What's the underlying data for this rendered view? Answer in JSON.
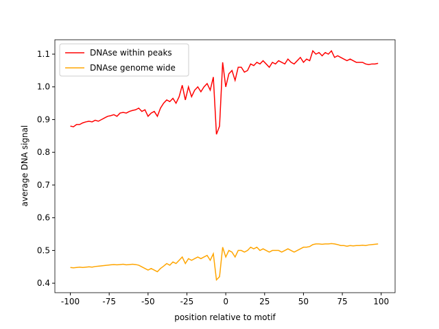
{
  "chart_data": {
    "type": "line",
    "xlabel": "position relative to motif",
    "ylabel": "average DNA signal",
    "x": [
      -100,
      -98,
      -96,
      -94,
      -92,
      -90,
      -88,
      -86,
      -84,
      -82,
      -80,
      -78,
      -76,
      -74,
      -72,
      -70,
      -68,
      -66,
      -64,
      -62,
      -60,
      -58,
      -56,
      -54,
      -52,
      -50,
      -48,
      -46,
      -44,
      -42,
      -40,
      -38,
      -36,
      -34,
      -32,
      -30,
      -28,
      -26,
      -24,
      -22,
      -20,
      -18,
      -16,
      -14,
      -12,
      -10,
      -8,
      -6,
      -4,
      -2,
      0,
      2,
      4,
      6,
      8,
      10,
      12,
      14,
      16,
      18,
      20,
      22,
      24,
      26,
      28,
      30,
      32,
      34,
      36,
      38,
      40,
      42,
      44,
      46,
      48,
      50,
      52,
      54,
      56,
      58,
      60,
      62,
      64,
      66,
      68,
      70,
      72,
      74,
      76,
      78,
      80,
      82,
      84,
      86,
      88,
      90,
      92,
      94,
      96,
      98
    ],
    "series": [
      {
        "name": "DNAse within peaks",
        "color": "#ff0000",
        "values": [
          0.88,
          0.878,
          0.885,
          0.885,
          0.89,
          0.893,
          0.895,
          0.893,
          0.898,
          0.895,
          0.9,
          0.905,
          0.91,
          0.912,
          0.915,
          0.91,
          0.92,
          0.922,
          0.92,
          0.925,
          0.928,
          0.93,
          0.935,
          0.925,
          0.93,
          0.91,
          0.92,
          0.925,
          0.91,
          0.935,
          0.95,
          0.96,
          0.955,
          0.965,
          0.95,
          0.97,
          1.005,
          0.96,
          1.0,
          0.97,
          0.99,
          1.0,
          0.985,
          1.0,
          1.01,
          0.99,
          1.03,
          0.855,
          0.88,
          1.075,
          1.0,
          1.04,
          1.05,
          1.02,
          1.06,
          1.06,
          1.045,
          1.05,
          1.07,
          1.065,
          1.075,
          1.07,
          1.08,
          1.07,
          1.06,
          1.075,
          1.07,
          1.08,
          1.075,
          1.07,
          1.085,
          1.075,
          1.07,
          1.08,
          1.09,
          1.075,
          1.085,
          1.08,
          1.11,
          1.1,
          1.105,
          1.095,
          1.105,
          1.1,
          1.11,
          1.09,
          1.095,
          1.09,
          1.085,
          1.08,
          1.085,
          1.08,
          1.075,
          1.075,
          1.075,
          1.07,
          1.068,
          1.07,
          1.07,
          1.072
        ]
      },
      {
        "name": "DNAse genome wide",
        "color": "#ffa500",
        "values": [
          0.448,
          0.447,
          0.448,
          0.449,
          0.448,
          0.449,
          0.45,
          0.449,
          0.451,
          0.452,
          0.453,
          0.454,
          0.455,
          0.456,
          0.457,
          0.456,
          0.457,
          0.458,
          0.456,
          0.457,
          0.458,
          0.457,
          0.455,
          0.45,
          0.445,
          0.44,
          0.445,
          0.44,
          0.435,
          0.445,
          0.452,
          0.46,
          0.455,
          0.465,
          0.46,
          0.47,
          0.48,
          0.46,
          0.475,
          0.47,
          0.475,
          0.48,
          0.475,
          0.48,
          0.485,
          0.47,
          0.49,
          0.41,
          0.42,
          0.51,
          0.48,
          0.5,
          0.495,
          0.48,
          0.5,
          0.5,
          0.495,
          0.5,
          0.51,
          0.505,
          0.51,
          0.5,
          0.505,
          0.5,
          0.495,
          0.5,
          0.5,
          0.5,
          0.495,
          0.5,
          0.505,
          0.5,
          0.495,
          0.5,
          0.505,
          0.51,
          0.51,
          0.512,
          0.518,
          0.52,
          0.52,
          0.519,
          0.52,
          0.52,
          0.521,
          0.52,
          0.518,
          0.515,
          0.515,
          0.513,
          0.515,
          0.514,
          0.515,
          0.515,
          0.516,
          0.515,
          0.517,
          0.518,
          0.519,
          0.52
        ]
      }
    ],
    "xlim": [
      -109.95,
      108.95
    ],
    "xticks": [
      -100,
      -75,
      -50,
      -25,
      0,
      25,
      50,
      75,
      100
    ],
    "ylim": [
      0.371,
      1.144
    ],
    "yticks": [
      0.4,
      0.5,
      0.6,
      0.7,
      0.8,
      0.9,
      {
        "value": 1,
        "label": "1.0"
      },
      1.1
    ],
    "legend": "upper left"
  }
}
